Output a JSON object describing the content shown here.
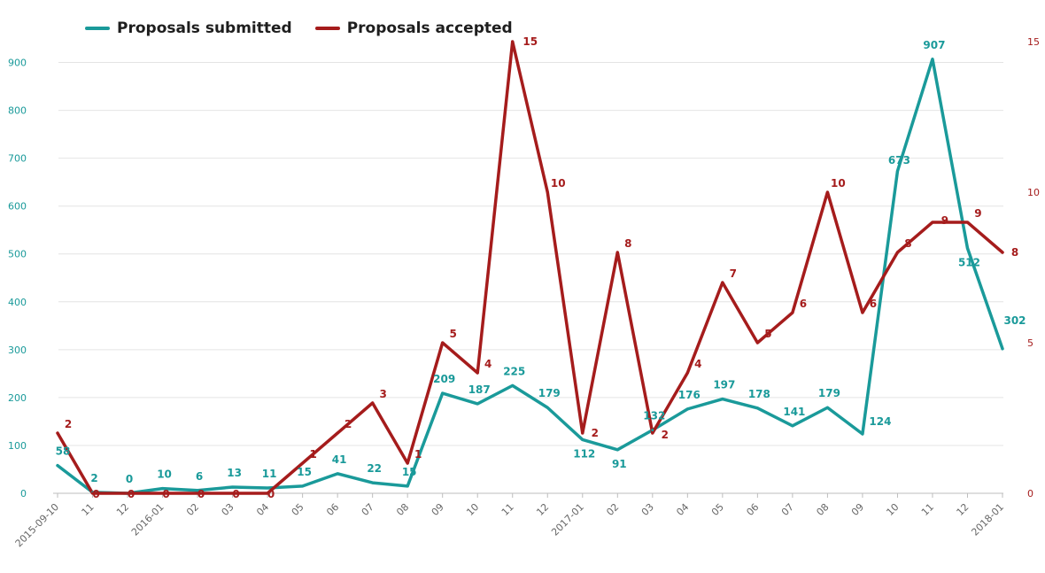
{
  "chart_data": {
    "type": "line",
    "categories": [
      "2015-09-10",
      "11",
      "12",
      "2016-01",
      "02",
      "03",
      "04",
      "05",
      "06",
      "07",
      "08",
      "09",
      "10",
      "11",
      "12",
      "2017-01",
      "02",
      "03",
      "04",
      "05",
      "06",
      "07",
      "08",
      "09",
      "10",
      "11",
      "12",
      "2018-01"
    ],
    "series": [
      {
        "name": "Proposals submitted",
        "axis": "left",
        "color": "#1a9a9a",
        "values": [
          58,
          2,
          0,
          10,
          6,
          13,
          11,
          15,
          41,
          22,
          15,
          209,
          187,
          225,
          179,
          112,
          91,
          132,
          176,
          197,
          178,
          141,
          179,
          124,
          673,
          907,
          512,
          302
        ]
      },
      {
        "name": "Proposals accepted",
        "axis": "right",
        "color": "#a51c1c",
        "values": [
          2,
          0,
          0,
          0,
          0,
          0,
          0,
          1,
          2,
          3,
          1,
          5,
          4,
          15,
          10,
          2,
          8,
          2,
          4,
          7,
          5,
          6,
          10,
          6,
          8,
          9,
          9,
          8
        ]
      }
    ],
    "y_left": {
      "ticks": [
        "0",
        "100",
        "200",
        "300",
        "400",
        "500",
        "600",
        "700",
        "800",
        "900"
      ],
      "ylim": [
        0,
        975
      ]
    },
    "y_right": {
      "ticks": [
        "0",
        "5",
        "10",
        "15"
      ],
      "ylim": [
        0,
        15.5
      ]
    },
    "grid": true,
    "legend": "top-left"
  }
}
